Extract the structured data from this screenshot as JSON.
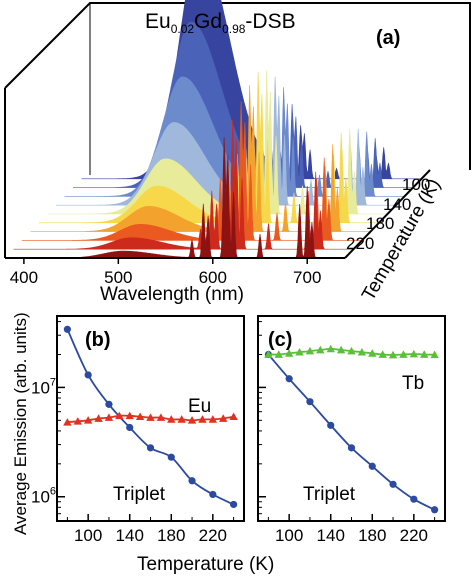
{
  "chart_data": [
    {
      "type": "area",
      "panel_label": "(a)",
      "title_main": "Eu",
      "title_sub1": "0.02",
      "title_mid": "Gd",
      "title_sub2": "0.98",
      "title_tail": "-DSB",
      "xlabel": "Wavelength (nm)",
      "zlabel": "Temperature (K)",
      "xlim": [
        380,
        740
      ],
      "xticks": [
        "400",
        "500",
        "600",
        "700"
      ],
      "zticks": [
        "100",
        "140",
        "180",
        "220"
      ],
      "series": [
        {
          "temperature": 80,
          "color": "#3845a0",
          "broad_peak": 1.0,
          "sharp_peak": 0.35
        },
        {
          "temperature": 100,
          "color": "#4a62b8",
          "broad_peak": 0.72,
          "sharp_peak": 0.55
        },
        {
          "temperature": 120,
          "color": "#6c8bcc",
          "broad_peak": 0.52,
          "sharp_peak": 0.72
        },
        {
          "temperature": 140,
          "color": "#9fb8dc",
          "broad_peak": 0.36,
          "sharp_peak": 0.85
        },
        {
          "temperature": 160,
          "color": "#e8eb9a",
          "broad_peak": 0.24,
          "sharp_peak": 0.95
        },
        {
          "temperature": 180,
          "color": "#f6d84a",
          "broad_peak": 0.16,
          "sharp_peak": 1.0
        },
        {
          "temperature": 200,
          "color": "#f3a22e",
          "broad_peak": 0.11,
          "sharp_peak": 0.97
        },
        {
          "temperature": 220,
          "color": "#ea5a20",
          "broad_peak": 0.07,
          "sharp_peak": 0.92
        },
        {
          "temperature": 240,
          "color": "#cc2a1c",
          "broad_peak": 0.05,
          "sharp_peak": 0.86
        },
        {
          "temperature": 260,
          "color": "#8e1212",
          "broad_peak": 0.03,
          "sharp_peak": 0.8
        }
      ]
    },
    {
      "type": "line",
      "panel_label": "(b)",
      "xlabel": "Temperature (K)",
      "ylabel": "Average Emission (arb. units)",
      "yscale": "log",
      "xlim": [
        70,
        250
      ],
      "ylim": [
        600000,
        45000000
      ],
      "xticks": [
        100,
        140,
        180,
        220
      ],
      "yticks": [
        {
          "value": 1000000,
          "base": "10",
          "exp": "6"
        },
        {
          "value": 10000000,
          "base": "10",
          "exp": "7"
        }
      ],
      "series": [
        {
          "name": "Triplet",
          "color": "#2b4aa0",
          "marker": "circle",
          "x": [
            80,
            100,
            120,
            140,
            160,
            180,
            200,
            220,
            240
          ],
          "y": [
            34000000,
            13000000,
            7000000,
            4300000,
            2800000,
            2300000,
            1400000,
            1050000,
            850000
          ]
        },
        {
          "name": "Eu",
          "color": "#e0321e",
          "marker": "triangle",
          "x": [
            80,
            90,
            100,
            110,
            120,
            130,
            140,
            150,
            160,
            170,
            180,
            190,
            200,
            210,
            220,
            230,
            240
          ],
          "y": [
            4800000,
            4900000,
            5000000,
            5200000,
            5300000,
            5500000,
            5500000,
            5400000,
            5300000,
            5300000,
            5100000,
            5100000,
            5000000,
            5100000,
            5100000,
            5200000,
            5400000
          ]
        }
      ]
    },
    {
      "type": "line",
      "panel_label": "(c)",
      "xlabel": "Temperature (K)",
      "yscale": "log",
      "xlim": [
        70,
        250
      ],
      "ylim": [
        600000,
        45000000
      ],
      "xticks": [
        100,
        140,
        180,
        220
      ],
      "series": [
        {
          "name": "Triplet",
          "color": "#2b4aa0",
          "marker": "circle",
          "x": [
            80,
            100,
            120,
            140,
            160,
            180,
            200,
            220,
            240
          ],
          "y": [
            20000000,
            12000000,
            7400000,
            4500000,
            2800000,
            1900000,
            1300000,
            950000,
            760000
          ]
        },
        {
          "name": "Tb",
          "color": "#5cbf3a",
          "marker": "triangle",
          "x": [
            80,
            90,
            100,
            110,
            120,
            130,
            140,
            150,
            160,
            170,
            180,
            190,
            200,
            210,
            220,
            230,
            240
          ],
          "y": [
            20000000,
            20000000,
            20500000,
            21000000,
            21500000,
            22000000,
            22500000,
            22000000,
            21500000,
            21000000,
            20500000,
            20000000,
            19800000,
            20000000,
            20200000,
            20000000,
            19900000
          ]
        }
      ]
    }
  ]
}
